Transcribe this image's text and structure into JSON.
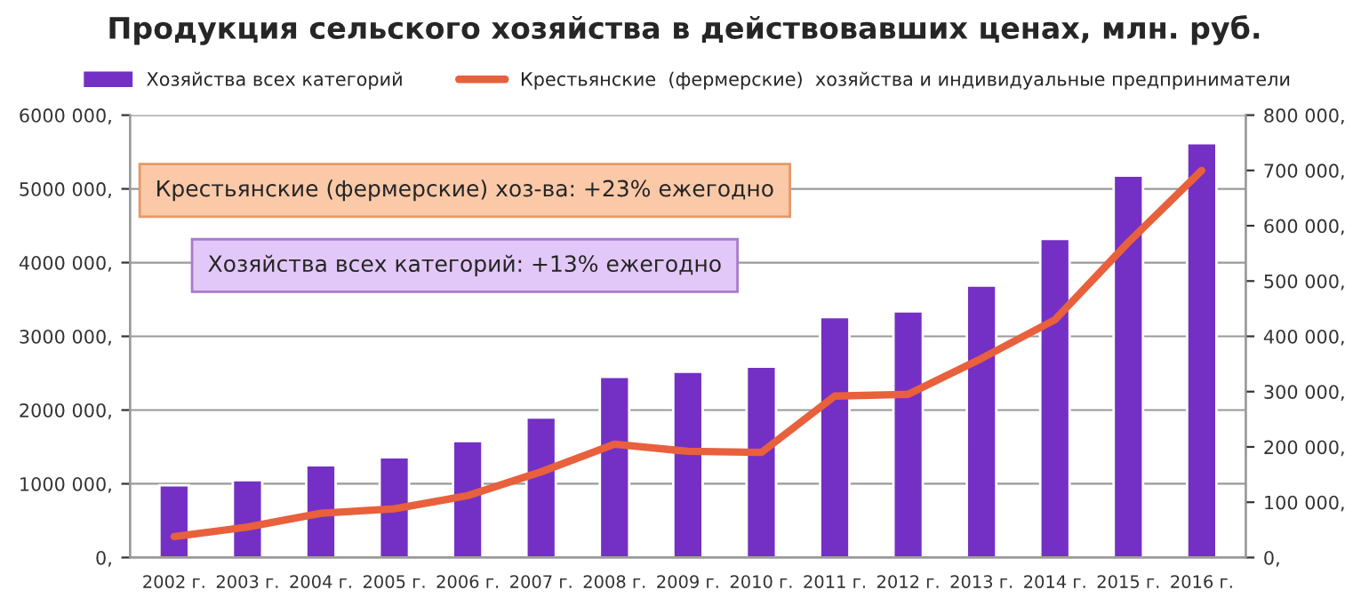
{
  "chart_data": {
    "type": "bar",
    "title": "Продукция сельского хозяйства в действовавших ценах, млн. руб.",
    "categories": [
      "2002 г.",
      "2003 г.",
      "2004 г.",
      "2005 г.",
      "2006 г.",
      "2007 г.",
      "2008 г.",
      "2009 г.",
      "2010 г.",
      "2011 г.",
      "2012 г.",
      "2013 г.",
      "2014 г.",
      "2015 г.",
      "2016 г."
    ],
    "series": [
      {
        "name": "Хозяйства всех категорий",
        "color": "#7430c4",
        "values": [
          980000,
          1050000,
          1250000,
          1360000,
          1580000,
          1900000,
          2450000,
          2520000,
          2590000,
          3260000,
          3340000,
          3690000,
          4320000,
          5180000,
          5620000
        ]
      },
      {
        "name": "Крестьянские  (фермерские)  хозяйства и индивидуальные предприниматели",
        "type": "line",
        "axis": "y2",
        "color": "#e8603c",
        "values": [
          38000,
          55000,
          80000,
          88000,
          112000,
          155000,
          205000,
          192000,
          190000,
          292000,
          295000,
          360000,
          430000,
          570000,
          700000
        ]
      }
    ],
    "ylim": [
      0,
      6000000
    ],
    "yticks": [
      {
        "value": 0,
        "label": "0,"
      },
      {
        "value": 1000000,
        "label": "1000 000,"
      },
      {
        "value": 2000000,
        "label": "2000 000,"
      },
      {
        "value": 3000000,
        "label": "3000 000,"
      },
      {
        "value": 4000000,
        "label": "4000 000,"
      },
      {
        "value": 5000000,
        "label": "5000 000,"
      },
      {
        "value": 6000000,
        "label": "6000 000,"
      }
    ],
    "y2lim": [
      0,
      800000
    ],
    "y2ticks": [
      {
        "value": 0,
        "label": "0,"
      },
      {
        "value": 100000,
        "label": "100 000,"
      },
      {
        "value": 200000,
        "label": "200 000,"
      },
      {
        "value": 300000,
        "label": "300 000,"
      },
      {
        "value": 400000,
        "label": "400 000,"
      },
      {
        "value": 500000,
        "label": "500 000,"
      },
      {
        "value": 600000,
        "label": "600 000,"
      },
      {
        "value": 700000,
        "label": "700 000,"
      },
      {
        "value": 800000,
        "label": "800 000,"
      }
    ],
    "annotations": [
      "Крестьянские (фермерские) хоз-ва: +23% ежегодно",
      "Хозяйства всех категорий: +13% ежегодно"
    ],
    "grid": "y",
    "legend": "top",
    "marker": "none",
    "line_style": "solid"
  }
}
